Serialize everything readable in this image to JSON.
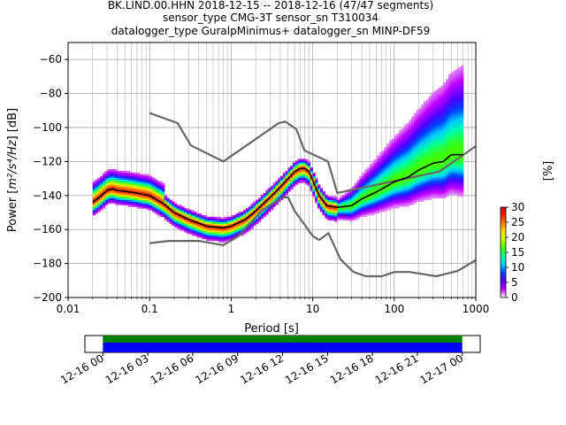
{
  "title_lines": [
    "BK.LIND.00.HHN   2018-12-15 -- 2018-12-16  (47/47 segments)",
    "sensor_type CMG-3T sensor_sn T310034",
    "datalogger_type GuralpMinimus+ datalogger_sn MINP-DF59"
  ],
  "chart_data": [
    {
      "type": "heatmap",
      "name": "ppsd",
      "xlabel": "Period [s]",
      "ylabel_prefix": "Power [",
      "ylabel_units": "m²/s⁴/Hz",
      "ylabel_suffix": "] [dB]",
      "xscale": "log",
      "xlim": [
        0.01,
        1000
      ],
      "ylim": [
        -200,
        -50
      ],
      "grid": true,
      "x_ticks": [
        0.01,
        0.1,
        1,
        10,
        100,
        1000
      ],
      "x_tick_labels": [
        "0.01",
        "0.1",
        "1",
        "10",
        "100",
        "1000"
      ],
      "y_ticks": [
        -200,
        -180,
        -160,
        -140,
        -120,
        -100,
        -80,
        -60
      ],
      "y_tick_labels": [
        "−200",
        "−180",
        "−160",
        "−140",
        "−120",
        "−100",
        "−80",
        "−60"
      ],
      "nhnm": [
        [
          0.1,
          -91.5
        ],
        [
          0.22,
          -97.4
        ],
        [
          0.32,
          -110.5
        ],
        [
          0.8,
          -120
        ],
        [
          3.8,
          -97.5
        ],
        [
          4.6,
          -96.5
        ],
        [
          6.3,
          -101
        ],
        [
          7.9,
          -113.5
        ],
        [
          15.4,
          -120
        ],
        [
          20,
          -138.5
        ],
        [
          354.8,
          -126
        ],
        [
          1000,
          -111
        ]
      ],
      "nlnm": [
        [
          0.1,
          -168
        ],
        [
          0.17,
          -166.7
        ],
        [
          0.4,
          -166.7
        ],
        [
          0.8,
          -169.2
        ],
        [
          1.24,
          -163.7
        ],
        [
          2.4,
          -148.6
        ],
        [
          4.3,
          -141.1
        ],
        [
          5,
          -141.1
        ],
        [
          6,
          -149
        ],
        [
          10,
          -163.8
        ],
        [
          12,
          -166.2
        ],
        [
          15.6,
          -162.1
        ],
        [
          21.9,
          -177.5
        ],
        [
          31.6,
          -185
        ],
        [
          45,
          -187.5
        ],
        [
          70,
          -187.5
        ],
        [
          101,
          -185
        ],
        [
          154,
          -185
        ],
        [
          328,
          -187.5
        ],
        [
          600,
          -184.4
        ],
        [
          1000,
          -178
        ]
      ],
      "mode": [
        [
          0.02,
          -144
        ],
        [
          0.025,
          -140.5
        ],
        [
          0.03,
          -137
        ],
        [
          0.035,
          -136
        ],
        [
          0.04,
          -137
        ],
        [
          0.06,
          -138
        ],
        [
          0.1,
          -140
        ],
        [
          0.15,
          -145
        ],
        [
          0.2,
          -150
        ],
        [
          0.3,
          -154
        ],
        [
          0.5,
          -158
        ],
        [
          0.8,
          -159
        ],
        [
          1,
          -158
        ],
        [
          1.5,
          -154
        ],
        [
          2,
          -149
        ],
        [
          3,
          -141
        ],
        [
          4,
          -135
        ],
        [
          5,
          -130
        ],
        [
          6,
          -126
        ],
        [
          7,
          -124
        ],
        [
          8,
          -124
        ],
        [
          9,
          -126
        ],
        [
          10,
          -131
        ],
        [
          12,
          -140
        ],
        [
          15,
          -146
        ],
        [
          20,
          -147
        ],
        [
          30,
          -146
        ],
        [
          40,
          -142
        ],
        [
          60,
          -138
        ],
        [
          100,
          -132
        ],
        [
          150,
          -129
        ],
        [
          200,
          -125
        ],
        [
          300,
          -121
        ],
        [
          400,
          -120
        ],
        [
          500,
          -116
        ],
        [
          600,
          -116
        ],
        [
          700,
          -116
        ]
      ],
      "colorbar": {
        "label": "[%]",
        "range": [
          0,
          30
        ],
        "ticks": [
          0,
          5,
          10,
          15,
          20,
          25,
          30
        ]
      }
    },
    {
      "type": "timeline",
      "name": "data-coverage",
      "tick_labels": [
        "12-16 00",
        "12-16 03",
        "12-16 06",
        "12-16 09",
        "12-16 12",
        "12-16 15",
        "12-16 18",
        "12-16 21",
        "12-17 00"
      ],
      "coverage_start_hour": 0,
      "coverage_end_hour": 24,
      "axis_start_hour": -1.2,
      "axis_end_hour": 25.2,
      "bar_colors": [
        "#008000",
        "#0000ff"
      ]
    }
  ],
  "colors": {
    "noise_model": "#666666",
    "mode_line": "#000000",
    "grid": "#b0b0b0",
    "colormap": [
      "#ffffff",
      "#c000ff",
      "#5000ff",
      "#0040ff",
      "#00c8ff",
      "#00ffa0",
      "#40ff00",
      "#c0ff00",
      "#ffe000",
      "#ff8000",
      "#ff2000",
      "#c00000"
    ]
  }
}
